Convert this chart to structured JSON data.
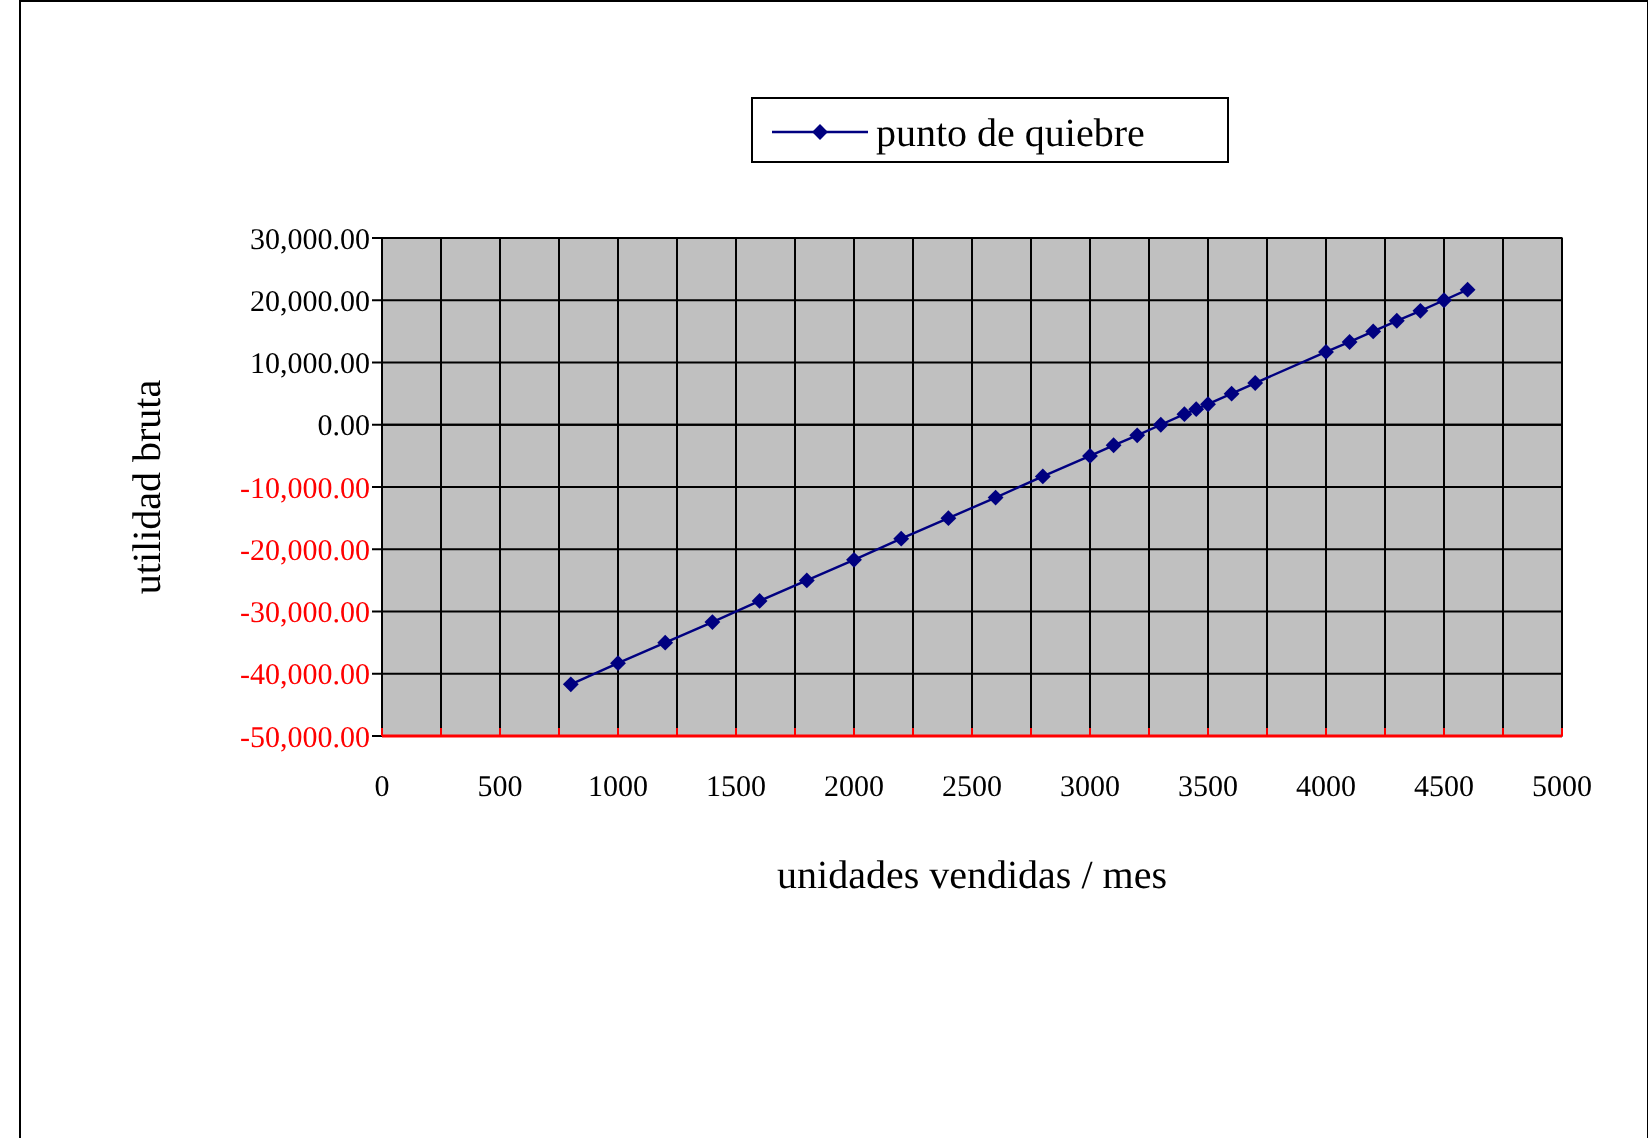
{
  "chart_data": {
    "type": "line",
    "xlabel": "unidades vendidas / mes",
    "ylabel": "utilidad bruta",
    "x": [
      800,
      1000,
      1200,
      1400,
      1600,
      1800,
      2000,
      2200,
      2400,
      2600,
      2800,
      3000,
      3100,
      3200,
      3300,
      3400,
      3450,
      3500,
      3600,
      3700,
      4000,
      4100,
      4200,
      4300,
      4400,
      4500,
      4600
    ],
    "series": [
      {
        "name": "punto de quiebre",
        "color": "#000080",
        "values": [
          -41700,
          -38300,
          -35000,
          -31700,
          -28300,
          -25000,
          -21700,
          -18300,
          -15000,
          -11700,
          -8300,
          -5000,
          -3300,
          -1700,
          0,
          1700,
          2500,
          3300,
          5000,
          6700,
          11700,
          13300,
          15000,
          16700,
          18300,
          20000,
          21700
        ]
      }
    ],
    "xlim": [
      0,
      5000
    ],
    "xticks": [
      0,
      {
        "value": 250,
        "label": null
      },
      500,
      {
        "value": 750,
        "label": null
      },
      1000,
      {
        "value": 1250,
        "label": null
      },
      1500,
      {
        "value": 1750,
        "label": null
      },
      2000,
      {
        "value": 2250,
        "label": null
      },
      2500,
      {
        "value": 2750,
        "label": null
      },
      3000,
      {
        "value": 3250,
        "label": null
      },
      3500,
      {
        "value": 3750,
        "label": null
      },
      4000,
      {
        "value": 4250,
        "label": null
      },
      4500,
      {
        "value": 4750,
        "label": null
      },
      5000
    ],
    "ylim": [
      -50000,
      30000
    ],
    "yticks": [
      {
        "value": -50000,
        "label": "-50,000.00"
      },
      {
        "value": -40000,
        "label": "-40,000.00"
      },
      {
        "value": -30000,
        "label": "-30,000.00"
      },
      {
        "value": -20000,
        "label": "-20,000.00"
      },
      {
        "value": -10000,
        "label": "-10,000.00"
      },
      {
        "value": 0,
        "label": "0.00"
      },
      {
        "value": 10000,
        "label": "10,000.00"
      },
      {
        "value": 20000,
        "label": "20,000.00"
      },
      {
        "value": 30000,
        "label": "30,000.00"
      }
    ],
    "grid": true,
    "legend": "top",
    "marker": "diamond",
    "line_style": "solid"
  }
}
